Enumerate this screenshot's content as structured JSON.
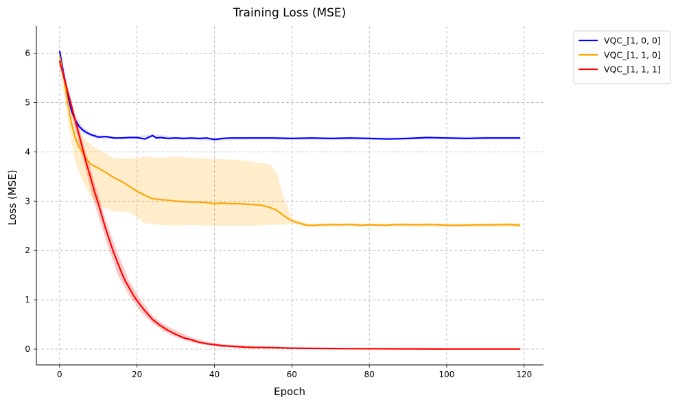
{
  "chart_data": {
    "type": "line",
    "title": "Training Loss (MSE)",
    "xlabel": "Epoch",
    "ylabel": "Loss (MSE)",
    "xlim": [
      -6,
      125
    ],
    "ylim": [
      -0.32,
      6.55
    ],
    "xticks": [
      0,
      20,
      40,
      60,
      80,
      100,
      120
    ],
    "yticks": [
      0,
      1,
      2,
      3,
      4,
      5,
      6
    ],
    "grid": true,
    "legend_position": "outside-top-right",
    "series": [
      {
        "name": "VQC_[1, 0, 0]",
        "color": "#0000ff",
        "band_color": "#8080ff",
        "points": [
          [
            0,
            6.05
          ],
          [
            1,
            5.6
          ],
          [
            2,
            5.2
          ],
          [
            3,
            4.85
          ],
          [
            4,
            4.65
          ],
          [
            5,
            4.52
          ],
          [
            6,
            4.44
          ],
          [
            7,
            4.39
          ],
          [
            8,
            4.35
          ],
          [
            10,
            4.3
          ],
          [
            12,
            4.31
          ],
          [
            14,
            4.28
          ],
          [
            16,
            4.28
          ],
          [
            18,
            4.29
          ],
          [
            20,
            4.29
          ],
          [
            22,
            4.26
          ],
          [
            24,
            4.33
          ],
          [
            25,
            4.28
          ],
          [
            26,
            4.29
          ],
          [
            28,
            4.27
          ],
          [
            30,
            4.28
          ],
          [
            32,
            4.27
          ],
          [
            34,
            4.28
          ],
          [
            36,
            4.27
          ],
          [
            38,
            4.28
          ],
          [
            40,
            4.25
          ],
          [
            42,
            4.27
          ],
          [
            44,
            4.28
          ],
          [
            46,
            4.28
          ],
          [
            50,
            4.28
          ],
          [
            55,
            4.28
          ],
          [
            60,
            4.27
          ],
          [
            65,
            4.28
          ],
          [
            70,
            4.27
          ],
          [
            75,
            4.28
          ],
          [
            80,
            4.27
          ],
          [
            85,
            4.26
          ],
          [
            90,
            4.27
          ],
          [
            95,
            4.29
          ],
          [
            100,
            4.28
          ],
          [
            105,
            4.27
          ],
          [
            110,
            4.28
          ],
          [
            115,
            4.28
          ],
          [
            119,
            4.28
          ]
        ],
        "band": [
          [
            0,
            6.18,
            5.92
          ],
          [
            2,
            5.32,
            5.08
          ],
          [
            4,
            4.75,
            4.55
          ],
          [
            6,
            4.51,
            4.37
          ],
          [
            8,
            4.39,
            4.31
          ],
          [
            10,
            4.34,
            4.26
          ],
          [
            15,
            4.31,
            4.25
          ],
          [
            20,
            4.32,
            4.26
          ],
          [
            24,
            4.36,
            4.3
          ],
          [
            30,
            4.31,
            4.25
          ],
          [
            40,
            4.28,
            4.22
          ],
          [
            50,
            4.31,
            4.25
          ],
          [
            60,
            4.3,
            4.24
          ],
          [
            80,
            4.3,
            4.24
          ],
          [
            100,
            4.31,
            4.25
          ],
          [
            119,
            4.31,
            4.25
          ]
        ]
      },
      {
        "name": "VQC_[1, 1, 0]",
        "color": "#ffa500",
        "band_color": "#ffa500",
        "points": [
          [
            0,
            5.95
          ],
          [
            1,
            5.55
          ],
          [
            2,
            5.05
          ],
          [
            3,
            4.6
          ],
          [
            4,
            4.3
          ],
          [
            5,
            4.1
          ],
          [
            6,
            3.98
          ],
          [
            7,
            3.85
          ],
          [
            8,
            3.75
          ],
          [
            10,
            3.67
          ],
          [
            12,
            3.58
          ],
          [
            14,
            3.48
          ],
          [
            16,
            3.4
          ],
          [
            18,
            3.3
          ],
          [
            20,
            3.2
          ],
          [
            22,
            3.12
          ],
          [
            24,
            3.05
          ],
          [
            26,
            3.03
          ],
          [
            28,
            3.02
          ],
          [
            30,
            3.0
          ],
          [
            32,
            2.99
          ],
          [
            34,
            2.98
          ],
          [
            36,
            2.98
          ],
          [
            38,
            2.97
          ],
          [
            40,
            2.95
          ],
          [
            42,
            2.96
          ],
          [
            44,
            2.95
          ],
          [
            46,
            2.95
          ],
          [
            48,
            2.94
          ],
          [
            50,
            2.93
          ],
          [
            52,
            2.92
          ],
          [
            54,
            2.88
          ],
          [
            56,
            2.82
          ],
          [
            58,
            2.7
          ],
          [
            60,
            2.6
          ],
          [
            62,
            2.55
          ],
          [
            64,
            2.51
          ],
          [
            66,
            2.51
          ],
          [
            68,
            2.52
          ],
          [
            70,
            2.53
          ],
          [
            72,
            2.52
          ],
          [
            75,
            2.53
          ],
          [
            78,
            2.51
          ],
          [
            80,
            2.52
          ],
          [
            84,
            2.51
          ],
          [
            88,
            2.53
          ],
          [
            92,
            2.52
          ],
          [
            96,
            2.53
          ],
          [
            100,
            2.51
          ],
          [
            104,
            2.51
          ],
          [
            108,
            2.52
          ],
          [
            112,
            2.52
          ],
          [
            116,
            2.53
          ],
          [
            119,
            2.51
          ]
        ],
        "band": [
          [
            0,
            6.0,
            5.75
          ],
          [
            2,
            5.2,
            4.7
          ],
          [
            4,
            4.7,
            3.8
          ],
          [
            6,
            4.3,
            3.4
          ],
          [
            8,
            4.15,
            3.1
          ],
          [
            10,
            4.05,
            2.9
          ],
          [
            14,
            3.88,
            2.8
          ],
          [
            18,
            3.86,
            2.78
          ],
          [
            22,
            3.9,
            2.55
          ],
          [
            26,
            3.88,
            2.52
          ],
          [
            30,
            3.9,
            2.5
          ],
          [
            34,
            3.88,
            2.52
          ],
          [
            38,
            3.86,
            2.5
          ],
          [
            42,
            3.85,
            2.5
          ],
          [
            46,
            3.84,
            2.5
          ],
          [
            50,
            3.8,
            2.5
          ],
          [
            54,
            3.75,
            2.52
          ],
          [
            56,
            3.6,
            2.52
          ],
          [
            58,
            3.05,
            2.52
          ],
          [
            60,
            2.66,
            2.55
          ],
          [
            64,
            2.54,
            2.48
          ],
          [
            80,
            2.55,
            2.49
          ],
          [
            100,
            2.54,
            2.48
          ],
          [
            119,
            2.55,
            2.48
          ]
        ]
      },
      {
        "name": "VQC_[1, 1, 1]",
        "color": "#ff0000",
        "band_color": "#ff0000",
        "points": [
          [
            0,
            5.85
          ],
          [
            1,
            5.55
          ],
          [
            2,
            5.25
          ],
          [
            3,
            4.95
          ],
          [
            4,
            4.65
          ],
          [
            5,
            4.35
          ],
          [
            6,
            4.05
          ],
          [
            7,
            3.75
          ],
          [
            8,
            3.48
          ],
          [
            9,
            3.2
          ],
          [
            10,
            2.95
          ],
          [
            11,
            2.68
          ],
          [
            12,
            2.42
          ],
          [
            13,
            2.18
          ],
          [
            14,
            1.95
          ],
          [
            15,
            1.75
          ],
          [
            16,
            1.55
          ],
          [
            17,
            1.38
          ],
          [
            18,
            1.24
          ],
          [
            19,
            1.1
          ],
          [
            20,
            0.98
          ],
          [
            22,
            0.78
          ],
          [
            24,
            0.6
          ],
          [
            26,
            0.48
          ],
          [
            28,
            0.38
          ],
          [
            30,
            0.3
          ],
          [
            32,
            0.23
          ],
          [
            34,
            0.19
          ],
          [
            36,
            0.14
          ],
          [
            38,
            0.11
          ],
          [
            40,
            0.09
          ],
          [
            42,
            0.07
          ],
          [
            44,
            0.06
          ],
          [
            46,
            0.05
          ],
          [
            48,
            0.04
          ],
          [
            50,
            0.035
          ],
          [
            55,
            0.03
          ],
          [
            60,
            0.02
          ],
          [
            65,
            0.015
          ],
          [
            70,
            0.012
          ],
          [
            75,
            0.01
          ],
          [
            80,
            0.008
          ],
          [
            90,
            0.005
          ],
          [
            100,
            0.003
          ],
          [
            110,
            0.002
          ],
          [
            119,
            0.002
          ]
        ],
        "band": [
          [
            0,
            5.95,
            5.75
          ],
          [
            3,
            5.05,
            4.8
          ],
          [
            6,
            4.2,
            3.85
          ],
          [
            9,
            3.4,
            2.95
          ],
          [
            12,
            2.6,
            2.2
          ],
          [
            15,
            1.95,
            1.5
          ],
          [
            18,
            1.38,
            1.08
          ],
          [
            21,
            1.0,
            0.75
          ],
          [
            24,
            0.68,
            0.52
          ],
          [
            27,
            0.5,
            0.36
          ],
          [
            30,
            0.38,
            0.24
          ],
          [
            34,
            0.24,
            0.14
          ],
          [
            38,
            0.15,
            0.08
          ],
          [
            42,
            0.1,
            0.04
          ],
          [
            48,
            0.07,
            0.02
          ],
          [
            55,
            0.05,
            0.01
          ],
          [
            60,
            0.03,
            0.005
          ],
          [
            80,
            0.015,
            0.0
          ],
          [
            100,
            0.008,
            0.0
          ],
          [
            119,
            0.006,
            0.0
          ]
        ]
      }
    ]
  }
}
